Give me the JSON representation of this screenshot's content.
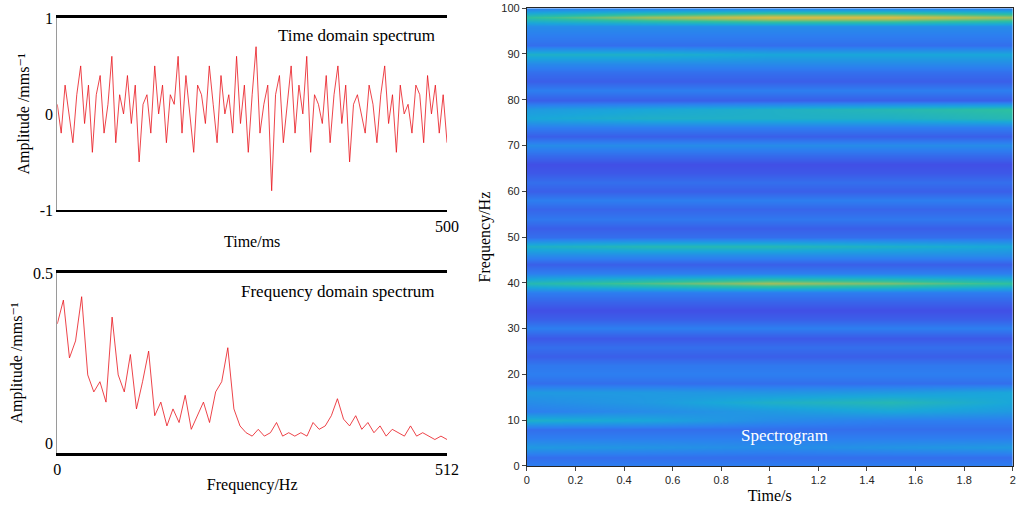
{
  "chart_data": [
    {
      "type": "line",
      "title": "Time domain spectrum",
      "x_label": "Time/ms",
      "y_label": "Amplitude /mms⁻¹",
      "x": [
        0,
        5,
        10,
        15,
        20,
        25,
        30,
        35,
        40,
        45,
        50,
        55,
        60,
        65,
        70,
        75,
        80,
        85,
        90,
        95,
        100,
        105,
        110,
        115,
        120,
        125,
        130,
        135,
        140,
        145,
        150,
        155,
        160,
        165,
        170,
        175,
        180,
        185,
        190,
        195,
        200,
        205,
        210,
        215,
        220,
        225,
        230,
        235,
        240,
        245,
        250,
        255,
        260,
        265,
        270,
        275,
        280,
        285,
        290,
        295,
        300,
        305,
        310,
        315,
        320,
        325,
        330,
        335,
        340,
        345,
        350,
        355,
        360,
        365,
        370,
        375,
        380,
        385,
        390,
        395,
        400,
        405,
        410,
        415,
        420,
        425,
        430,
        435,
        440,
        445,
        450,
        455,
        460,
        465,
        470,
        475,
        480,
        485,
        490,
        495,
        500
      ],
      "series": [
        {
          "color": "#e8141c",
          "values": [
            0.1,
            -0.2,
            0.3,
            0.0,
            -0.3,
            0.2,
            0.5,
            -0.1,
            0.3,
            -0.4,
            0.2,
            0.4,
            -0.2,
            0.1,
            0.6,
            -0.3,
            0.2,
            0.0,
            0.4,
            -0.1,
            0.3,
            -0.5,
            0.1,
            0.2,
            -0.2,
            0.5,
            0.0,
            0.3,
            -0.3,
            0.2,
            0.1,
            0.6,
            -0.2,
            0.4,
            0.0,
            -0.4,
            0.3,
            0.2,
            -0.1,
            0.5,
            0.1,
            -0.3,
            0.4,
            0.0,
            0.2,
            -0.2,
            0.6,
            -0.1,
            0.3,
            -0.4,
            0.2,
            0.7,
            -0.2,
            0.1,
            0.3,
            -0.8,
            0.2,
            0.4,
            -0.3,
            0.1,
            0.5,
            -0.2,
            0.3,
            0.0,
            0.6,
            -0.4,
            0.2,
            0.1,
            -0.1,
            0.4,
            -0.3,
            0.2,
            0.5,
            -0.1,
            0.3,
            -0.5,
            0.1,
            0.2,
            0.0,
            -0.2,
            0.3,
            0.1,
            -0.3,
            0.2,
            0.5,
            -0.1,
            0.2,
            -0.4,
            0.3,
            0.0,
            0.1,
            -0.2,
            0.3,
            0.2,
            -0.3,
            0.4,
            0.0,
            0.3,
            -0.2,
            0.2,
            -0.3
          ]
        }
      ],
      "xlim": [
        0,
        500
      ],
      "xticks": [
        500
      ],
      "ylim": [
        -1,
        1
      ],
      "yticks": [
        -1,
        0,
        1
      ],
      "grid": false
    },
    {
      "type": "line",
      "title": "Frequency domain spectrum",
      "x_label": "Frequency/Hz",
      "y_label": "Amplitude /mms⁻¹",
      "x": [
        0,
        8,
        16,
        24,
        32,
        40,
        48,
        56,
        64,
        72,
        80,
        88,
        96,
        104,
        112,
        120,
        128,
        136,
        144,
        152,
        160,
        168,
        176,
        184,
        192,
        200,
        208,
        216,
        224,
        232,
        240,
        248,
        256,
        264,
        272,
        280,
        288,
        296,
        304,
        312,
        320,
        328,
        336,
        344,
        352,
        360,
        368,
        376,
        384,
        392,
        400,
        408,
        416,
        424,
        432,
        440,
        448,
        456,
        464,
        472,
        480,
        488,
        496,
        504,
        512
      ],
      "series": [
        {
          "color": "#e8141c",
          "values": [
            0.35,
            0.42,
            0.25,
            0.3,
            0.43,
            0.2,
            0.15,
            0.18,
            0.12,
            0.37,
            0.2,
            0.15,
            0.26,
            0.1,
            0.18,
            0.27,
            0.08,
            0.12,
            0.05,
            0.1,
            0.06,
            0.14,
            0.04,
            0.08,
            0.12,
            0.06,
            0.15,
            0.18,
            0.28,
            0.1,
            0.05,
            0.03,
            0.02,
            0.04,
            0.02,
            0.03,
            0.06,
            0.02,
            0.03,
            0.02,
            0.03,
            0.02,
            0.06,
            0.04,
            0.05,
            0.08,
            0.13,
            0.07,
            0.05,
            0.08,
            0.04,
            0.06,
            0.03,
            0.05,
            0.02,
            0.04,
            0.03,
            0.02,
            0.05,
            0.02,
            0.03,
            0.02,
            0.01,
            0.02,
            0.01
          ]
        }
      ],
      "xlim": [
        0,
        512
      ],
      "xticks": [
        0,
        512
      ],
      "ylim": [
        -0.03,
        0.5
      ],
      "yticks": [
        0,
        0.5
      ],
      "grid": false
    },
    {
      "type": "heatmap",
      "title": "Spectrogram",
      "x_label": "Time/s",
      "y_label": "Frequency/Hz",
      "x": [
        0,
        0.5,
        1,
        1.5,
        2
      ],
      "y": [
        0,
        2,
        4,
        6,
        8,
        10,
        12,
        14,
        16,
        18,
        20,
        22,
        24,
        26,
        28,
        30,
        32,
        34,
        36,
        38,
        40,
        42,
        44,
        46,
        48,
        50,
        52,
        54,
        56,
        58,
        60,
        62,
        64,
        66,
        68,
        70,
        72,
        74,
        76,
        78,
        80,
        82,
        84,
        86,
        88,
        90,
        92,
        94,
        96,
        98,
        100
      ],
      "z": [
        [
          0.3,
          0.3,
          0.3,
          0.3,
          0.3
        ],
        [
          0.25,
          0.25,
          0.25,
          0.25,
          0.25
        ],
        [
          0.4,
          0.38,
          0.35,
          0.38,
          0.4
        ],
        [
          0.3,
          0.3,
          0.3,
          0.3,
          0.3
        ],
        [
          0.25,
          0.25,
          0.25,
          0.25,
          0.25
        ],
        [
          0.5,
          0.45,
          0.35,
          0.3,
          0.3
        ],
        [
          0.3,
          0.35,
          0.4,
          0.45,
          0.4
        ],
        [
          0.35,
          0.4,
          0.5,
          0.55,
          0.45
        ],
        [
          0.4,
          0.4,
          0.38,
          0.4,
          0.45
        ],
        [
          0.25,
          0.25,
          0.25,
          0.25,
          0.25
        ],
        [
          0.3,
          0.3,
          0.3,
          0.3,
          0.3
        ],
        [
          0.28,
          0.28,
          0.28,
          0.28,
          0.28
        ],
        [
          0.2,
          0.2,
          0.2,
          0.2,
          0.2
        ],
        [
          0.25,
          0.25,
          0.25,
          0.25,
          0.25
        ],
        [
          0.18,
          0.18,
          0.18,
          0.18,
          0.18
        ],
        [
          0.3,
          0.3,
          0.3,
          0.3,
          0.3
        ],
        [
          0.2,
          0.2,
          0.2,
          0.2,
          0.2
        ],
        [
          0.15,
          0.15,
          0.15,
          0.15,
          0.15
        ],
        [
          0.22,
          0.22,
          0.22,
          0.22,
          0.22
        ],
        [
          0.3,
          0.3,
          0.3,
          0.3,
          0.3
        ],
        [
          0.55,
          0.65,
          0.75,
          0.7,
          0.6
        ],
        [
          0.3,
          0.3,
          0.3,
          0.3,
          0.3
        ],
        [
          0.2,
          0.2,
          0.2,
          0.2,
          0.2
        ],
        [
          0.35,
          0.35,
          0.35,
          0.35,
          0.35
        ],
        [
          0.5,
          0.55,
          0.55,
          0.5,
          0.45
        ],
        [
          0.25,
          0.25,
          0.25,
          0.25,
          0.25
        ],
        [
          0.2,
          0.2,
          0.2,
          0.2,
          0.2
        ],
        [
          0.28,
          0.28,
          0.28,
          0.28,
          0.28
        ],
        [
          0.22,
          0.22,
          0.22,
          0.22,
          0.22
        ],
        [
          0.3,
          0.3,
          0.3,
          0.3,
          0.3
        ],
        [
          0.2,
          0.2,
          0.2,
          0.2,
          0.2
        ],
        [
          0.25,
          0.25,
          0.25,
          0.25,
          0.25
        ],
        [
          0.18,
          0.18,
          0.18,
          0.18,
          0.18
        ],
        [
          0.15,
          0.15,
          0.15,
          0.15,
          0.15
        ],
        [
          0.25,
          0.25,
          0.25,
          0.25,
          0.25
        ],
        [
          0.35,
          0.35,
          0.35,
          0.35,
          0.35
        ],
        [
          0.2,
          0.2,
          0.2,
          0.2,
          0.2
        ],
        [
          0.3,
          0.3,
          0.3,
          0.3,
          0.3
        ],
        [
          0.45,
          0.5,
          0.5,
          0.5,
          0.55
        ],
        [
          0.4,
          0.45,
          0.5,
          0.55,
          0.6
        ],
        [
          0.2,
          0.2,
          0.2,
          0.2,
          0.2
        ],
        [
          0.3,
          0.3,
          0.3,
          0.3,
          0.3
        ],
        [
          0.2,
          0.2,
          0.2,
          0.2,
          0.2
        ],
        [
          0.25,
          0.25,
          0.25,
          0.25,
          0.25
        ],
        [
          0.35,
          0.35,
          0.35,
          0.35,
          0.35
        ],
        [
          0.5,
          0.5,
          0.45,
          0.45,
          0.45
        ],
        [
          0.25,
          0.25,
          0.25,
          0.25,
          0.25
        ],
        [
          0.3,
          0.3,
          0.3,
          0.3,
          0.3
        ],
        [
          0.35,
          0.35,
          0.35,
          0.35,
          0.35
        ],
        [
          0.6,
          0.75,
          0.85,
          0.85,
          0.75
        ],
        [
          0.3,
          0.3,
          0.3,
          0.3,
          0.3
        ]
      ],
      "zlim": [
        0,
        1
      ],
      "xlim": [
        0,
        2
      ],
      "xticks": [
        0,
        0.2,
        0.4,
        0.6,
        0.8,
        1,
        1.2,
        1.4,
        1.6,
        1.8,
        2
      ],
      "ylim": [
        0,
        100
      ],
      "yticks": [
        0,
        10,
        20,
        30,
        40,
        50,
        60,
        70,
        80,
        90,
        100
      ],
      "grid": false
    }
  ]
}
